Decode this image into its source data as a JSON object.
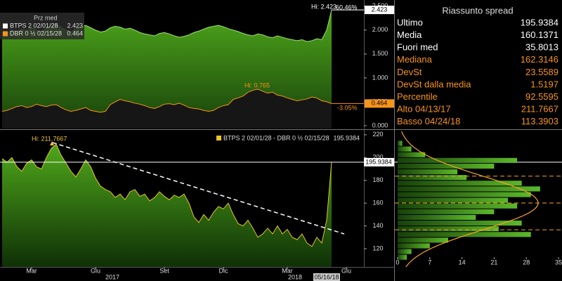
{
  "chart_data": [
    {
      "type": "line",
      "legend_title": "Prz med",
      "ylim": [
        -0.06,
        2.63
      ],
      "yticks": [
        {
          "value": 0,
          "label": "0.000"
        },
        {
          "value": 0.5,
          "label": "0.500"
        },
        {
          "value": 1,
          "label": "1.000"
        },
        {
          "value": 1.5,
          "label": "1.500"
        },
        {
          "value": 2,
          "label": "2.000"
        },
        {
          "value": 2.5,
          "label": "2.500"
        }
      ],
      "series": [
        {
          "name": "BTPS 2 02/01/28",
          "color": "#ffffff",
          "fill": "#3f8f14",
          "values": [
            1.95,
            1.93,
            2.0,
            1.97,
            2.02,
            1.98,
            2.05,
            2.0,
            1.97,
            2.04,
            2.1,
            2.12,
            2.05,
            2.0,
            1.96,
            2.02,
            2.06,
            2.1,
            2.05,
            2.0,
            1.96,
            1.98,
            2.05,
            2.08,
            2.06,
            2.02,
            2.04,
            2.0,
            1.95,
            1.92,
            1.9,
            1.88,
            1.93,
            1.95,
            1.92,
            1.88,
            1.85,
            1.87,
            1.9,
            1.95,
            1.98,
            2.02,
            2.06,
            2.08,
            2.1,
            2.07,
            2.03,
            2.0,
            1.97,
            1.93,
            1.9,
            1.88,
            1.92,
            1.9,
            1.86,
            1.84,
            1.88,
            1.85,
            1.82,
            1.8,
            1.78,
            1.8,
            1.76,
            1.78,
            1.82,
            1.8,
            2.0,
            2.423,
            null,
            null,
            null,
            null,
            null,
            null
          ]
        },
        {
          "name": "DBR 0 ½ 02/15/28",
          "color": "#f7941d",
          "fill": "#161616",
          "values": [
            0.3,
            0.32,
            0.36,
            0.4,
            0.42,
            0.38,
            0.4,
            0.45,
            0.42,
            0.4,
            0.43,
            0.44,
            0.38,
            0.33,
            0.3,
            0.32,
            0.35,
            0.38,
            0.32,
            0.3,
            0.28,
            0.3,
            0.44,
            0.5,
            0.55,
            0.52,
            0.5,
            0.47,
            0.45,
            0.42,
            0.38,
            0.36,
            0.4,
            0.45,
            0.46,
            0.44,
            0.47,
            0.43,
            0.38,
            0.36,
            0.35,
            0.32,
            0.3,
            0.32,
            0.38,
            0.42,
            0.44,
            0.55,
            0.58,
            0.62,
            0.7,
            0.74,
            0.765,
            0.72,
            0.68,
            0.7,
            0.64,
            0.62,
            0.58,
            0.55,
            0.52,
            0.54,
            0.56,
            0.6,
            0.58,
            0.52,
            0.5,
            0.464,
            null,
            null,
            null,
            null,
            null,
            null
          ]
        }
      ],
      "annotations": [
        {
          "text": "Hi: 2.423",
          "color": "#ffffff"
        },
        {
          "text": "60.46%",
          "color": "#ffffff"
        },
        {
          "text": "Hi: 0.765",
          "color": "#f7941d"
        },
        {
          "text": "-3.05%",
          "color": "#f7941d"
        }
      ]
    },
    {
      "type": "area",
      "categories": [
        null,
        null,
        null,
        null,
        null,
        null,
        "Mar",
        null,
        null,
        null,
        null,
        null,
        null,
        null,
        null,
        null,
        null,
        null,
        null,
        "Giu",
        null,
        null,
        null,
        null,
        null,
        null,
        null,
        null,
        null,
        null,
        null,
        null,
        null,
        "Set",
        null,
        null,
        null,
        null,
        null,
        null,
        null,
        null,
        null,
        null,
        null,
        "Dic",
        null,
        null,
        null,
        null,
        null,
        null,
        null,
        null,
        null,
        null,
        null,
        null,
        "Mar",
        null,
        null,
        null,
        null,
        null,
        null,
        null,
        null,
        null,
        null,
        null,
        "Giu",
        null,
        null,
        null
      ],
      "year_labels": [
        "2017",
        "2018"
      ],
      "current_date": "05/16/18",
      "ylim": [
        104,
        223
      ],
      "yticks": [
        120,
        140,
        160,
        180,
        200,
        220
      ],
      "series": [
        {
          "name": "BTPS 2 02/01/28 - DBR 0 ½ 02/15/28",
          "color": "#e8c42a",
          "fill": "#3f8f14",
          "values": [
            199,
            196,
            200,
            192,
            188,
            195,
            198,
            192,
            190,
            200,
            208,
            211.7667,
            202,
            195,
            188,
            183,
            190,
            198,
            192,
            182,
            175,
            172,
            170,
            165,
            168,
            163,
            170,
            172,
            166,
            168,
            162,
            165,
            170,
            166,
            163,
            167,
            165,
            168,
            160,
            148,
            143,
            150,
            145,
            152,
            157,
            155,
            160,
            150,
            142,
            140,
            145,
            138,
            130,
            133,
            138,
            133,
            140,
            133,
            137,
            130,
            128,
            133,
            125,
            122,
            130,
            125,
            145,
            195.9384,
            null,
            null,
            null,
            null,
            null,
            null
          ]
        }
      ],
      "annotations": [
        {
          "text": "Hi: 211.7667",
          "color": "#f0c040"
        }
      ]
    },
    {
      "type": "histogram",
      "orientation": "horizontal",
      "color": "#3f8f14",
      "curve_color": "#f7a51d",
      "bins": [
        110,
        115,
        120,
        125,
        130,
        135,
        140,
        145,
        150,
        155,
        160,
        165,
        170,
        175,
        180,
        185,
        190,
        195,
        200,
        205,
        210,
        215
      ],
      "counts": [
        2,
        3,
        7,
        11,
        29,
        22,
        27,
        17,
        21,
        26,
        24,
        29,
        31,
        27,
        15,
        13,
        21,
        26,
        6,
        3,
        1
      ],
      "ylim": [
        104,
        223
      ],
      "xlim": [
        0,
        35
      ],
      "xticks": [
        0,
        7,
        14,
        21,
        28,
        35
      ]
    }
  ],
  "summary": {
    "title": "Riassunto spread",
    "rows": [
      {
        "label": "Ultimo",
        "value": 195.9384,
        "color": "#ffffff"
      },
      {
        "label": "Media",
        "value": 160.1371,
        "color": "#ffffff"
      },
      {
        "label": "Fuori med",
        "value": 35.8013,
        "color": "#ffffff"
      },
      {
        "label": "Mediana",
        "value": 162.3146,
        "color": "#f7941d"
      },
      {
        "label": "DevSt",
        "value": 23.5589,
        "color": "#f7941d"
      },
      {
        "label": "DevSt dalla media",
        "value": 1.5197,
        "color": "#f7941d"
      },
      {
        "label": "Percentile",
        "value": 92.5595,
        "color": "#f7941d"
      },
      {
        "label": "Alto 04/13/17",
        "value": 211.7667,
        "color": "#f7941d"
      },
      {
        "label": "Basso 04/24/18",
        "value": 113.3903,
        "color": "#f7941d"
      }
    ]
  }
}
